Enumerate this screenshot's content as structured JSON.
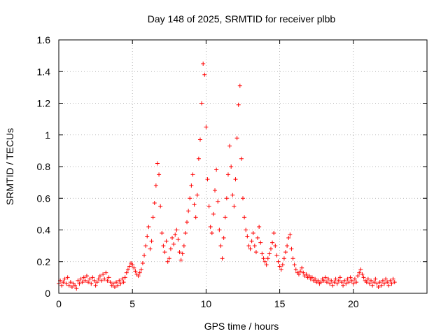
{
  "chart_data": {
    "type": "scatter",
    "title": "Day 148 of 2025, SRMTID for receiver plbb",
    "xlabel": "GPS time / hours",
    "ylabel": "SRMTID / TECUs",
    "xlim": [
      0,
      25
    ],
    "ylim": [
      0,
      1.6
    ],
    "grid": true,
    "marker": "+",
    "color": "#ff0000",
    "x_ticks": [
      0,
      5,
      10,
      15,
      20
    ],
    "x_tick_labels": [
      "0",
      "5",
      "10",
      "15",
      "20"
    ],
    "y_ticks": [
      0,
      0.2,
      0.4,
      0.6,
      0.8,
      1.0,
      1.2,
      1.4,
      1.6
    ],
    "y_tick_labels": [
      "0",
      "0.2",
      "0.4",
      "0.6",
      "0.8",
      "1",
      "1.2",
      "1.4",
      "1.6"
    ],
    "series": [
      {
        "name": "SRMTID",
        "points": [
          [
            0.0,
            0.06
          ],
          [
            0.1,
            0.08
          ],
          [
            0.2,
            0.05
          ],
          [
            0.3,
            0.07
          ],
          [
            0.4,
            0.09
          ],
          [
            0.5,
            0.06
          ],
          [
            0.6,
            0.1
          ],
          [
            0.7,
            0.05
          ],
          [
            0.8,
            0.07
          ],
          [
            0.9,
            0.04
          ],
          [
            1.0,
            0.06
          ],
          [
            1.1,
            0.05
          ],
          [
            1.2,
            0.03
          ],
          [
            1.3,
            0.08
          ],
          [
            1.4,
            0.06
          ],
          [
            1.5,
            0.09
          ],
          [
            1.6,
            0.07
          ],
          [
            1.7,
            0.1
          ],
          [
            1.8,
            0.08
          ],
          [
            1.9,
            0.11
          ],
          [
            2.0,
            0.07
          ],
          [
            2.1,
            0.09
          ],
          [
            2.2,
            0.06
          ],
          [
            2.3,
            0.1
          ],
          [
            2.4,
            0.08
          ],
          [
            2.5,
            0.05
          ],
          [
            2.6,
            0.07
          ],
          [
            2.7,
            0.09
          ],
          [
            2.8,
            0.11
          ],
          [
            2.9,
            0.08
          ],
          [
            3.0,
            0.12
          ],
          [
            3.1,
            0.09
          ],
          [
            3.2,
            0.13
          ],
          [
            3.3,
            0.08
          ],
          [
            3.4,
            0.1
          ],
          [
            3.5,
            0.07
          ],
          [
            3.6,
            0.05
          ],
          [
            3.7,
            0.06
          ],
          [
            3.8,
            0.04
          ],
          [
            3.9,
            0.07
          ],
          [
            4.0,
            0.05
          ],
          [
            4.1,
            0.08
          ],
          [
            4.2,
            0.06
          ],
          [
            4.3,
            0.09
          ],
          [
            4.4,
            0.07
          ],
          [
            4.5,
            0.1
          ],
          [
            4.6,
            0.13
          ],
          [
            4.7,
            0.15
          ],
          [
            4.8,
            0.17
          ],
          [
            4.9,
            0.19
          ],
          [
            5.0,
            0.18
          ],
          [
            5.1,
            0.16
          ],
          [
            5.2,
            0.14
          ],
          [
            5.3,
            0.12
          ],
          [
            5.4,
            0.11
          ],
          [
            5.5,
            0.13
          ],
          [
            5.6,
            0.15
          ],
          [
            5.7,
            0.19
          ],
          [
            5.8,
            0.24
          ],
          [
            5.9,
            0.3
          ],
          [
            6.0,
            0.36
          ],
          [
            6.1,
            0.42
          ],
          [
            6.2,
            0.28
          ],
          [
            6.3,
            0.33
          ],
          [
            6.4,
            0.48
          ],
          [
            6.5,
            0.57
          ],
          [
            6.6,
            0.68
          ],
          [
            6.7,
            0.82
          ],
          [
            6.8,
            0.75
          ],
          [
            6.9,
            0.55
          ],
          [
            7.0,
            0.38
          ],
          [
            7.1,
            0.3
          ],
          [
            7.2,
            0.26
          ],
          [
            7.3,
            0.33
          ],
          [
            7.4,
            0.2
          ],
          [
            7.5,
            0.22
          ],
          [
            7.6,
            0.28
          ],
          [
            7.7,
            0.35
          ],
          [
            7.8,
            0.31
          ],
          [
            7.9,
            0.37
          ],
          [
            8.0,
            0.4
          ],
          [
            8.1,
            0.34
          ],
          [
            8.2,
            0.26
          ],
          [
            8.3,
            0.21
          ],
          [
            8.4,
            0.25
          ],
          [
            8.5,
            0.3
          ],
          [
            8.6,
            0.38
          ],
          [
            8.7,
            0.45
          ],
          [
            8.8,
            0.52
          ],
          [
            8.9,
            0.6
          ],
          [
            9.0,
            0.68
          ],
          [
            9.1,
            0.75
          ],
          [
            9.2,
            0.56
          ],
          [
            9.3,
            0.48
          ],
          [
            9.4,
            0.62
          ],
          [
            9.5,
            0.85
          ],
          [
            9.6,
            0.97
          ],
          [
            9.7,
            1.2
          ],
          [
            9.8,
            1.45
          ],
          [
            9.9,
            1.38
          ],
          [
            10.0,
            1.05
          ],
          [
            10.1,
            0.72
          ],
          [
            10.2,
            0.55
          ],
          [
            10.3,
            0.42
          ],
          [
            10.4,
            0.38
          ],
          [
            10.5,
            0.5
          ],
          [
            10.6,
            0.65
          ],
          [
            10.7,
            0.78
          ],
          [
            10.8,
            0.58
          ],
          [
            10.9,
            0.4
          ],
          [
            11.0,
            0.3
          ],
          [
            11.1,
            0.22
          ],
          [
            11.2,
            0.35
          ],
          [
            11.3,
            0.48
          ],
          [
            11.4,
            0.6
          ],
          [
            11.5,
            0.75
          ],
          [
            11.6,
            0.93
          ],
          [
            11.7,
            0.8
          ],
          [
            11.8,
            0.62
          ],
          [
            11.9,
            0.55
          ],
          [
            12.0,
            0.72
          ],
          [
            12.1,
            0.98
          ],
          [
            12.2,
            1.19
          ],
          [
            12.3,
            1.31
          ],
          [
            12.4,
            0.85
          ],
          [
            12.5,
            0.6
          ],
          [
            12.6,
            0.48
          ],
          [
            12.7,
            0.4
          ],
          [
            12.8,
            0.36
          ],
          [
            12.9,
            0.3
          ],
          [
            13.0,
            0.28
          ],
          [
            13.1,
            0.33
          ],
          [
            13.2,
            0.38
          ],
          [
            13.3,
            0.3
          ],
          [
            13.4,
            0.26
          ],
          [
            13.5,
            0.35
          ],
          [
            13.6,
            0.42
          ],
          [
            13.7,
            0.32
          ],
          [
            13.8,
            0.25
          ],
          [
            13.9,
            0.22
          ],
          [
            14.0,
            0.2
          ],
          [
            14.1,
            0.18
          ],
          [
            14.2,
            0.22
          ],
          [
            14.3,
            0.25
          ],
          [
            14.4,
            0.28
          ],
          [
            14.5,
            0.32
          ],
          [
            14.6,
            0.38
          ],
          [
            14.7,
            0.3
          ],
          [
            14.8,
            0.24
          ],
          [
            14.9,
            0.2
          ],
          [
            15.0,
            0.17
          ],
          [
            15.1,
            0.15
          ],
          [
            15.2,
            0.18
          ],
          [
            15.3,
            0.22
          ],
          [
            15.4,
            0.26
          ],
          [
            15.5,
            0.3
          ],
          [
            15.6,
            0.35
          ],
          [
            15.7,
            0.37
          ],
          [
            15.8,
            0.28
          ],
          [
            15.9,
            0.22
          ],
          [
            16.0,
            0.18
          ],
          [
            16.1,
            0.15
          ],
          [
            16.2,
            0.13
          ],
          [
            16.3,
            0.12
          ],
          [
            16.4,
            0.14
          ],
          [
            16.5,
            0.16
          ],
          [
            16.6,
            0.13
          ],
          [
            16.7,
            0.11
          ],
          [
            16.8,
            0.12
          ],
          [
            16.9,
            0.1
          ],
          [
            17.0,
            0.11
          ],
          [
            17.1,
            0.09
          ],
          [
            17.2,
            0.1
          ],
          [
            17.3,
            0.08
          ],
          [
            17.4,
            0.09
          ],
          [
            17.5,
            0.07
          ],
          [
            17.6,
            0.08
          ],
          [
            17.7,
            0.06
          ],
          [
            17.8,
            0.07
          ],
          [
            17.9,
            0.09
          ],
          [
            18.0,
            0.08
          ],
          [
            18.1,
            0.1
          ],
          [
            18.2,
            0.07
          ],
          [
            18.3,
            0.09
          ],
          [
            18.4,
            0.06
          ],
          [
            18.5,
            0.08
          ],
          [
            18.6,
            0.05
          ],
          [
            18.7,
            0.07
          ],
          [
            18.8,
            0.09
          ],
          [
            18.9,
            0.06
          ],
          [
            19.0,
            0.08
          ],
          [
            19.1,
            0.1
          ],
          [
            19.2,
            0.07
          ],
          [
            19.3,
            0.05
          ],
          [
            19.4,
            0.08
          ],
          [
            19.5,
            0.06
          ],
          [
            19.6,
            0.09
          ],
          [
            19.7,
            0.07
          ],
          [
            19.8,
            0.1
          ],
          [
            19.9,
            0.08
          ],
          [
            20.0,
            0.06
          ],
          [
            20.1,
            0.09
          ],
          [
            20.2,
            0.07
          ],
          [
            20.3,
            0.11
          ],
          [
            20.4,
            0.13
          ],
          [
            20.5,
            0.15
          ],
          [
            20.6,
            0.12
          ],
          [
            20.7,
            0.1
          ],
          [
            20.8,
            0.08
          ],
          [
            20.9,
            0.07
          ],
          [
            21.0,
            0.09
          ],
          [
            21.1,
            0.06
          ],
          [
            21.2,
            0.08
          ],
          [
            21.3,
            0.05
          ],
          [
            21.4,
            0.07
          ],
          [
            21.5,
            0.09
          ],
          [
            21.6,
            0.06
          ],
          [
            21.7,
            0.04
          ],
          [
            21.8,
            0.07
          ],
          [
            21.9,
            0.05
          ],
          [
            22.0,
            0.08
          ],
          [
            22.1,
            0.06
          ],
          [
            22.2,
            0.09
          ],
          [
            22.3,
            0.07
          ],
          [
            22.4,
            0.05
          ],
          [
            22.5,
            0.08
          ],
          [
            22.6,
            0.06
          ],
          [
            22.7,
            0.09
          ],
          [
            22.8,
            0.07
          ]
        ]
      }
    ]
  }
}
